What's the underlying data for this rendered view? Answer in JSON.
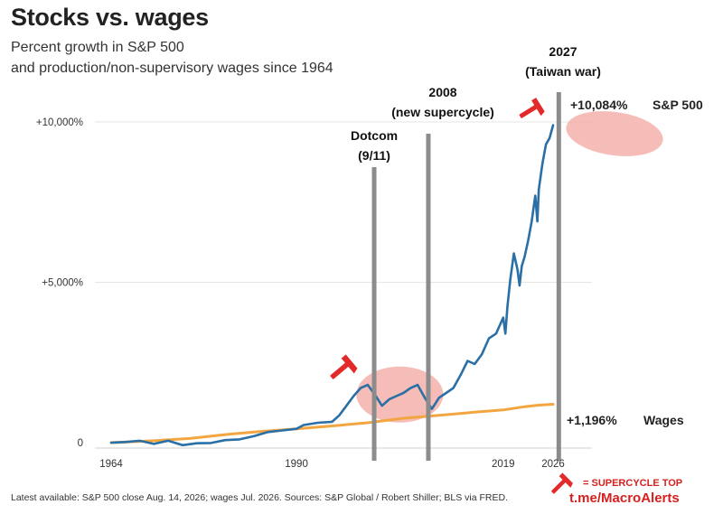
{
  "title": "Stocks vs. wages",
  "subtitle_line1": "Percent growth in S&P 500",
  "subtitle_line2": "and production/non-supervisory wages since 1964",
  "footer": "Latest available: S&P 500 close Aug. 14, 2026; wages Jul. 2026. Sources: S&P Global / Robert Shiller; BLS via FRED.",
  "channel": "t.me/MacroAlerts",
  "legend": {
    "marker_label": "= SUPERCYCLE TOP"
  },
  "colors": {
    "sp500": "#2a6fa5",
    "wages": "#f2a640",
    "event_line": "#8c8c8c",
    "highlight": "#f3a6a0",
    "marker": "#e32a2a"
  },
  "icons": {
    "marker": "hammer-icon"
  },
  "chart_data": {
    "type": "line",
    "x_ticks": [
      "1964",
      "1990",
      "2019",
      "2026"
    ],
    "y_ticks": [
      "+10,000%",
      "+5,000%",
      "0"
    ],
    "xlim": [
      1960,
      2028
    ],
    "ylim": [
      0,
      10500
    ],
    "grid": true,
    "series": [
      {
        "name": "S&P 500",
        "end_label": "+10,084%",
        "points": [
          [
            1964,
            0
          ],
          [
            1966,
            20
          ],
          [
            1968,
            60
          ],
          [
            1970,
            -40
          ],
          [
            1972,
            60
          ],
          [
            1974,
            -80
          ],
          [
            1976,
            -20
          ],
          [
            1978,
            -10
          ],
          [
            1980,
            80
          ],
          [
            1982,
            100
          ],
          [
            1984,
            200
          ],
          [
            1986,
            330
          ],
          [
            1988,
            380
          ],
          [
            1990,
            430
          ],
          [
            1991,
            550
          ],
          [
            1993,
            620
          ],
          [
            1995,
            650
          ],
          [
            1996,
            850
          ],
          [
            1997,
            1150
          ],
          [
            1998,
            1450
          ],
          [
            1999,
            1700
          ],
          [
            2000,
            1800
          ],
          [
            2001,
            1500
          ],
          [
            2002,
            1150
          ],
          [
            2003,
            1350
          ],
          [
            2004,
            1450
          ],
          [
            2005,
            1550
          ],
          [
            2006,
            1700
          ],
          [
            2007,
            1800
          ],
          [
            2008,
            1400
          ],
          [
            2009,
            1050
          ],
          [
            2010,
            1400
          ],
          [
            2011,
            1550
          ],
          [
            2012,
            1700
          ],
          [
            2013,
            2100
          ],
          [
            2014,
            2550
          ],
          [
            2015,
            2450
          ],
          [
            2016,
            2750
          ],
          [
            2017,
            3250
          ],
          [
            2018,
            3400
          ],
          [
            2019,
            3900
          ],
          [
            2019.3,
            3400
          ],
          [
            2019.6,
            4250
          ],
          [
            2020,
            5100
          ],
          [
            2020.5,
            5900
          ],
          [
            2021,
            5400
          ],
          [
            2021.3,
            4900
          ],
          [
            2021.6,
            5500
          ],
          [
            2022,
            5800
          ],
          [
            2022.5,
            6300
          ],
          [
            2023,
            6900
          ],
          [
            2023.5,
            7700
          ],
          [
            2023.8,
            6900
          ],
          [
            2024,
            7900
          ],
          [
            2024.5,
            8700
          ],
          [
            2025,
            9300
          ],
          [
            2025.5,
            9500
          ],
          [
            2026,
            9900
          ]
        ]
      },
      {
        "name": "Wages",
        "end_label": "+1,196%",
        "points": [
          [
            1964,
            0
          ],
          [
            1970,
            60
          ],
          [
            1975,
            130
          ],
          [
            1980,
            250
          ],
          [
            1985,
            350
          ],
          [
            1990,
            430
          ],
          [
            1995,
            520
          ],
          [
            2000,
            620
          ],
          [
            2005,
            760
          ],
          [
            2010,
            850
          ],
          [
            2015,
            950
          ],
          [
            2019,
            1020
          ],
          [
            2022,
            1120
          ],
          [
            2024,
            1170
          ],
          [
            2026,
            1196
          ]
        ]
      }
    ],
    "events": [
      {
        "label_line1": "Dotcom",
        "label_line2": "(9/11)",
        "x": 2000.9
      },
      {
        "label_line1": "2008",
        "label_line2": "(new supercycle)",
        "x": 2008.5
      },
      {
        "label_line1": "2027",
        "label_line2": "(Taiwan war)",
        "x": 2026.8
      }
    ]
  }
}
